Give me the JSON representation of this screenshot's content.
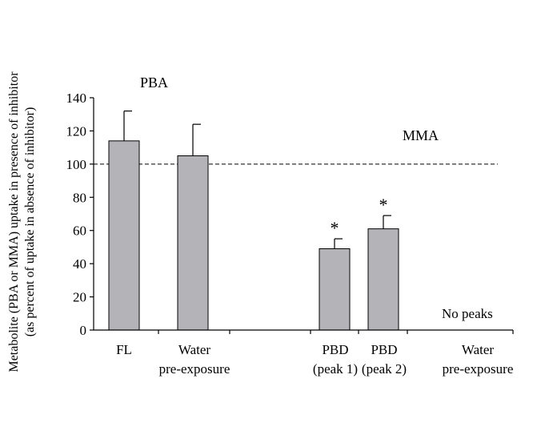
{
  "chart_data": {
    "type": "bar",
    "title": "",
    "ylabel": {
      "line1": "Metabolite (PBA or MMA) uptake in presence of inhibitor",
      "line2": "(as percent of uptake in absence of inhibitor)"
    },
    "xlabel": "",
    "ylim": [
      0,
      140
    ],
    "yticks": [
      0,
      20,
      40,
      60,
      80,
      100,
      120,
      140
    ],
    "reference_line": 100,
    "bar_color": "#b3b3b8",
    "groups": [
      {
        "label": "PBA"
      },
      {
        "label": "MMA"
      }
    ],
    "categories": [
      {
        "line1": "FL",
        "line2": ""
      },
      {
        "line1": "Water",
        "line2": "pre-exposure"
      },
      {
        "line1": "PBD",
        "line2": "(peak 1)"
      },
      {
        "line1": "PBD",
        "line2": "(peak 2)"
      },
      {
        "line1": "Water",
        "line2": "pre-exposure"
      }
    ],
    "values": [
      114,
      105,
      49,
      61,
      null
    ],
    "errors": [
      18,
      19,
      6,
      8,
      null
    ],
    "significance": [
      "",
      "",
      "*",
      "*",
      ""
    ],
    "annotations": [
      {
        "text": "No peaks"
      }
    ]
  }
}
